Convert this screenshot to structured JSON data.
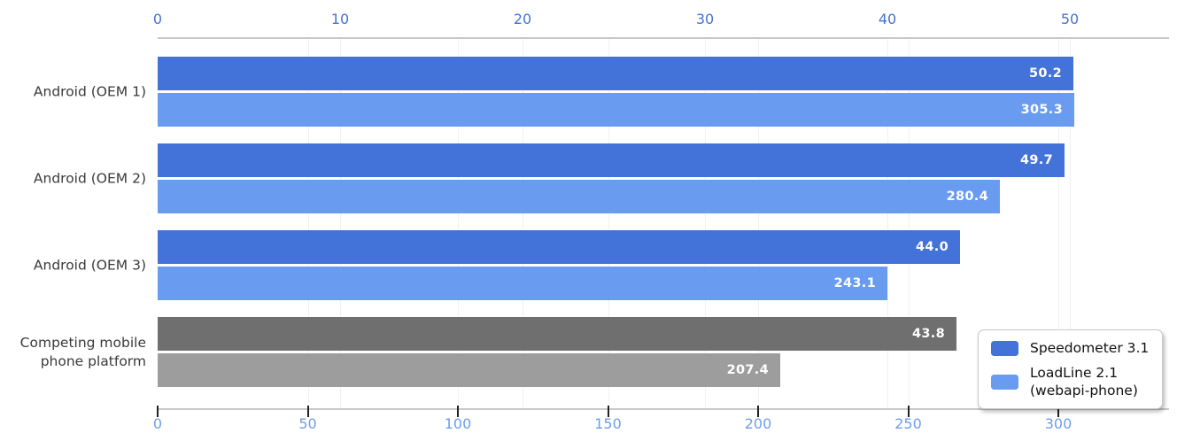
{
  "chart_data": {
    "type": "bar",
    "orientation": "horizontal",
    "categories": [
      "Android (OEM 1)",
      "Android (OEM 2)",
      "Android (OEM 3)",
      "Competing mobile\nphone platform"
    ],
    "series": [
      {
        "name": "Speedometer 3.1",
        "axis": "top",
        "values": [
          50.2,
          49.7,
          44.0,
          43.8
        ],
        "bar_colors": [
          "#4372d8",
          "#4372d8",
          "#4372d8",
          "#6f6f6f"
        ]
      },
      {
        "name": "LoadLine 2.1 (webapi-phone)",
        "axis": "bottom",
        "values": [
          305.3,
          280.4,
          243.1,
          207.4
        ],
        "bar_colors": [
          "#699bf0",
          "#699bf0",
          "#699bf0",
          "#9d9d9d"
        ]
      }
    ],
    "top_axis": {
      "ticks": [
        0,
        10,
        20,
        30,
        40,
        50
      ],
      "range_shown": [
        0,
        55
      ],
      "label_color": "#4573d2"
    },
    "bottom_axis": {
      "ticks": [
        0,
        50,
        100,
        150,
        200,
        250,
        300
      ],
      "range_shown": [
        0,
        336
      ],
      "label_color": "#6d9eeb"
    },
    "legend": {
      "entries": [
        {
          "label": "Speedometer 3.1",
          "color": "#4372d8"
        },
        {
          "label": "LoadLine 2.1\n(webapi-phone)",
          "color": "#699bf0"
        }
      ]
    },
    "grid": true,
    "legend_position": "bottom-right",
    "background": "#ffffff"
  }
}
